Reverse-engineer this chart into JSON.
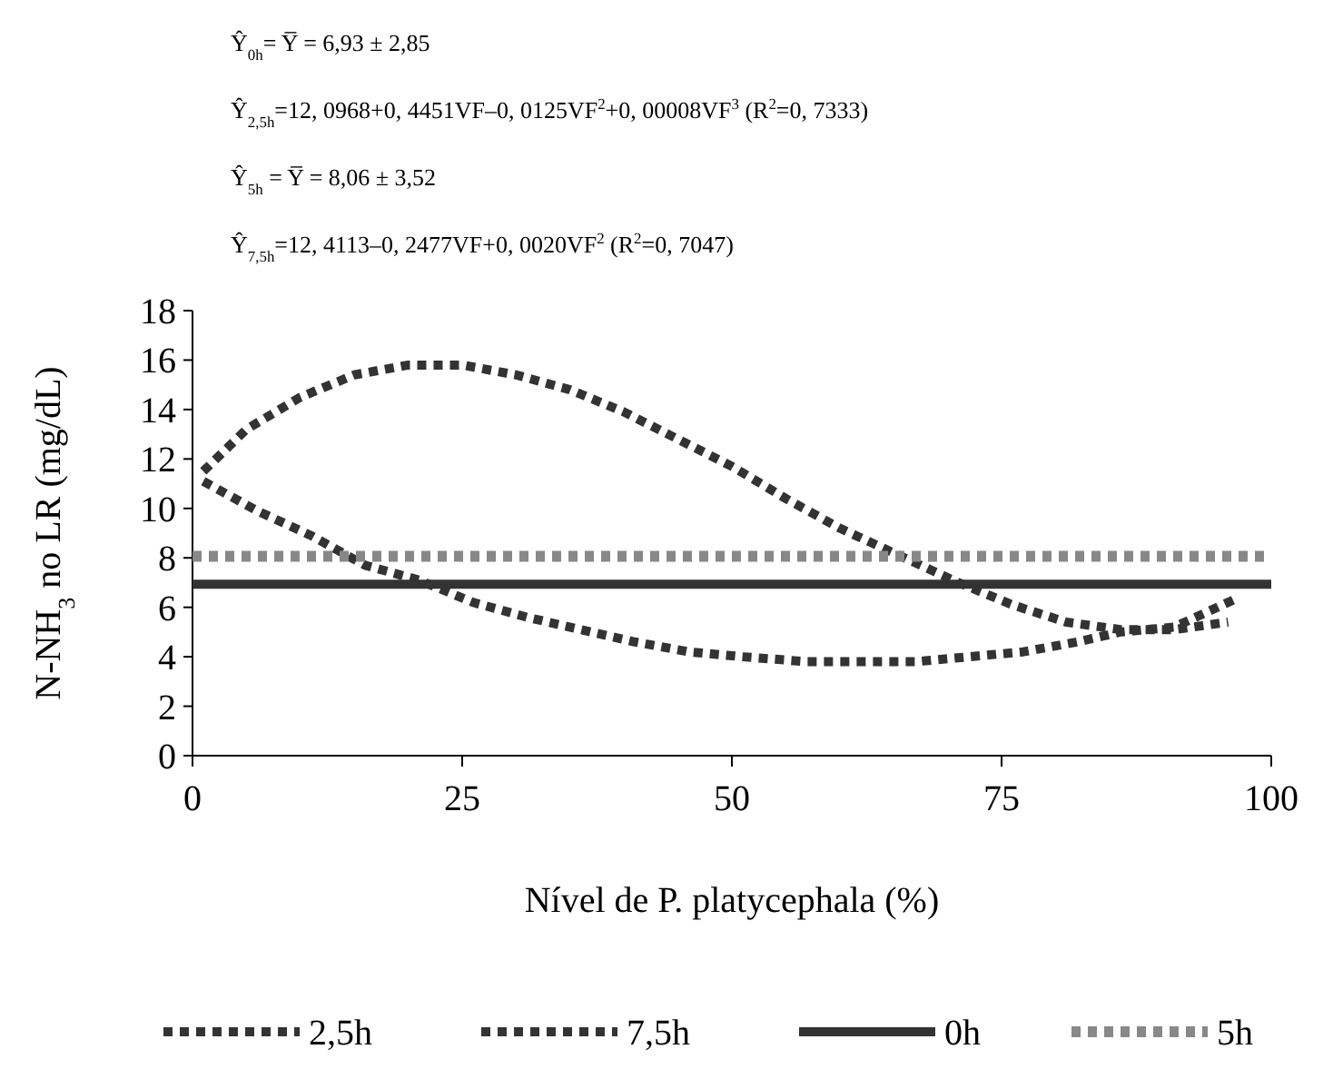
{
  "chart_data": {
    "type": "line",
    "xlabel": "Nível de P. platycephala (%)",
    "ylabel": "N-NH$_{3}$ no LR (mg/dL)",
    "annotations": [
      "Ŷ$_{0h}$=  Y̅ = 6,93 ± 2,85",
      "Ŷ$_{2,5h}$=12, 0968+0, 4451VF–0, 0125VF$^{2}$+0, 00008VF$^{3}$ (R$^{2}$=0, 7333)",
      "Ŷ$_{5h}$ =  Y̅ = 8,06 ± 3,52",
      "Ŷ$_{7,5h}$=12, 4113–0, 2477VF+0, 0020VF$^{2}$ (R$^{2}$=0, 7047)"
    ],
    "xlim": [
      0,
      100
    ],
    "xticks": [
      0,
      25,
      50,
      75,
      100
    ],
    "ylim": [
      0,
      18
    ],
    "yticks": [
      0,
      2,
      4,
      6,
      8,
      10,
      12,
      14,
      16,
      18
    ],
    "grid": false,
    "legend": "bottom",
    "series": [
      {
        "name": "2,5h",
        "color": "#333333",
        "line_style": "dashed",
        "x": [
          1,
          5,
          10,
          15,
          20,
          25,
          30,
          35,
          40,
          45,
          50,
          55,
          60,
          66,
          71,
          76,
          81,
          86,
          91,
          96
        ],
        "values": [
          11.5,
          13.2,
          14.5,
          15.4,
          15.8,
          15.8,
          15.4,
          14.8,
          13.9,
          12.8,
          11.7,
          10.4,
          9.2,
          8.0,
          7.0,
          6.1,
          5.4,
          5.1,
          5.1,
          5.4
        ]
      },
      {
        "name": "7,5h",
        "color": "#333333",
        "line_style": "dashed",
        "x": [
          1,
          6,
          11,
          16,
          21,
          26,
          31,
          36,
          41,
          46,
          51,
          57,
          62,
          67,
          72,
          77,
          82,
          86,
          91,
          97
        ],
        "values": [
          11.1,
          9.9,
          8.9,
          7.7,
          7.1,
          6.2,
          5.6,
          5.1,
          4.6,
          4.2,
          4.0,
          3.8,
          3.8,
          3.8,
          4.0,
          4.2,
          4.6,
          5.0,
          5.2,
          6.4
        ]
      },
      {
        "name": "0h",
        "color": "#333333",
        "line_style": "solid",
        "x": [
          0,
          100
        ],
        "values": [
          6.93,
          6.93
        ]
      },
      {
        "name": "5h",
        "color": "#888888",
        "line_style": "dashed",
        "x": [
          0,
          100
        ],
        "values": [
          8.06,
          8.06
        ]
      }
    ]
  }
}
